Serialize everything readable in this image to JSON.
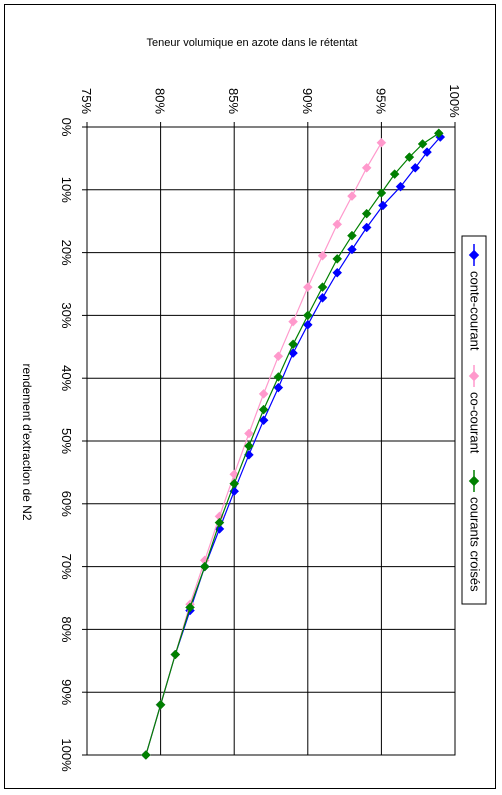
{
  "chart_data": {
    "type": "line",
    "title": "Teneur volumique en azote dans le rétentat",
    "xlabel": "rendement d'extraction de N2",
    "ylabel": "",
    "x_tick_labels": [
      "0%",
      "10%",
      "20%",
      "30%",
      "40%",
      "50%",
      "60%",
      "70%",
      "80%",
      "90%",
      "100%"
    ],
    "y_tick_labels": [
      "75%",
      "80%",
      "85%",
      "90%",
      "95%",
      "100%"
    ],
    "xlim": [
      0,
      100
    ],
    "ylim": [
      75,
      100
    ],
    "grid": true,
    "legend_position": "right",
    "orientation": "rotated 90 degrees clockwise",
    "series": [
      {
        "name": "conte-courant",
        "color": "#0000FF",
        "marker": "diamond",
        "x": [
          1.6,
          4,
          6.5,
          9.5,
          12.5,
          16,
          19.5,
          23.2,
          27.2,
          31.5,
          36,
          41.5,
          46.7,
          52.2,
          58,
          64,
          70,
          77,
          84,
          92,
          100
        ],
        "y": [
          99,
          98.1,
          97.3,
          96.3,
          95.1,
          94,
          93,
          92,
          91,
          90,
          89,
          88,
          87,
          86,
          85,
          84,
          83,
          82,
          81,
          80,
          79
        ]
      },
      {
        "name": "co-courant",
        "color": "#FF99CC",
        "marker": "diamond",
        "x": [
          2.5,
          6.5,
          11,
          15.5,
          20.5,
          25.5,
          31,
          36.5,
          42.5,
          48.8,
          55.3,
          62,
          69,
          76,
          84,
          92,
          100
        ],
        "y": [
          95,
          94,
          93,
          92,
          91,
          90,
          89,
          88,
          87,
          86,
          85,
          84,
          83,
          82,
          81,
          80,
          79
        ]
      },
      {
        "name": "courants croisés",
        "color": "#008000",
        "marker": "diamond",
        "x": [
          1,
          2.7,
          4.8,
          7.5,
          10.5,
          13.8,
          17.3,
          21,
          25.5,
          30,
          34.6,
          39.8,
          45,
          50.8,
          56.8,
          63,
          70,
          76.5,
          84,
          92,
          100
        ],
        "y": [
          98.9,
          97.8,
          96.9,
          95.9,
          95,
          94,
          93,
          92,
          91,
          90,
          89,
          88,
          87,
          86,
          85,
          84,
          83,
          82,
          81,
          80,
          79
        ]
      }
    ]
  }
}
